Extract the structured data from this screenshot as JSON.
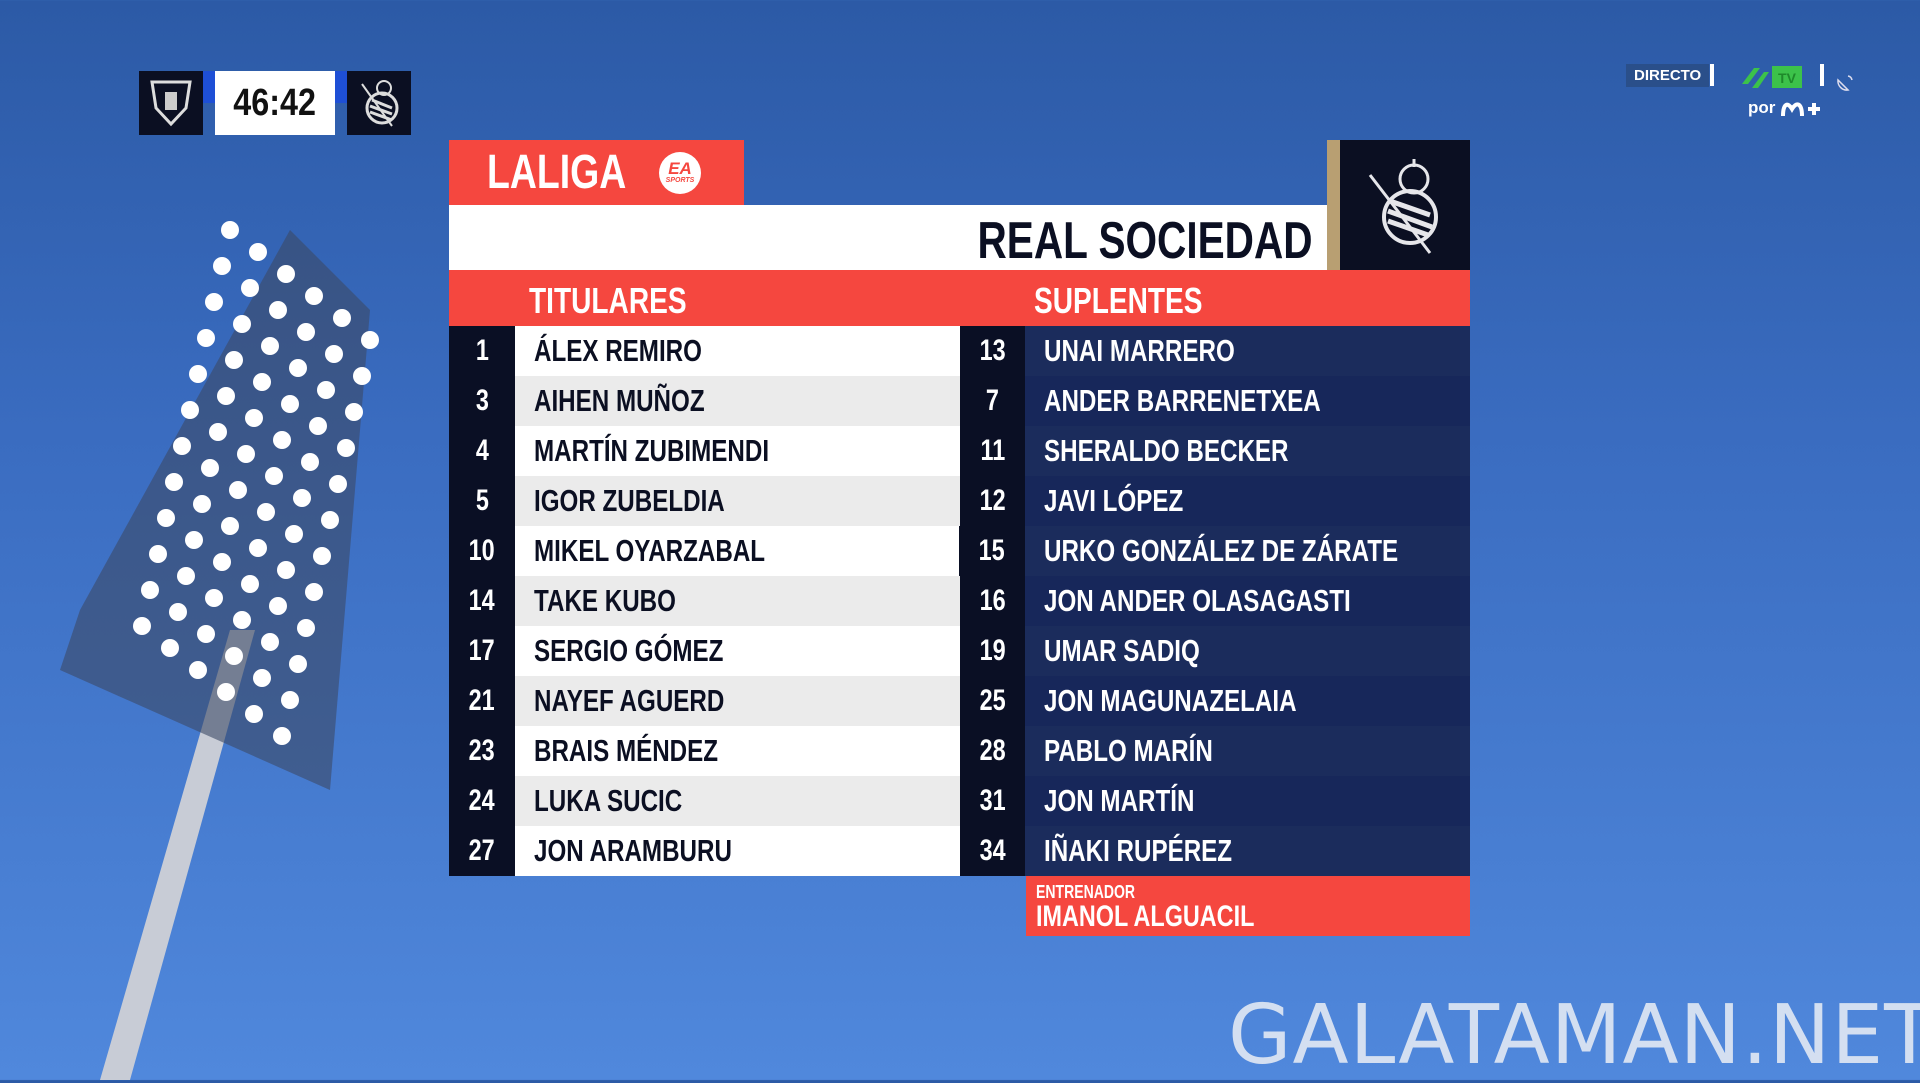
{
  "scorebug": {
    "clock": "46:42",
    "home_crest": "leganes-crest-icon",
    "away_crest": "real-sociedad-crest-icon",
    "accent": "#1e4fd6"
  },
  "broadcast": {
    "live_label": "DIRECTO",
    "channel_logo": "laliga-tv-logo",
    "por_label": "por",
    "provider_logo": "movistar-plus-logo",
    "satellite_icon": "satellite-dish-icon"
  },
  "graphic": {
    "league_label": "LALIGA",
    "sponsor_label": "EA SPORTS",
    "team_name": "REAL SOCIEDAD",
    "starters_label": "TITULARES",
    "subs_label": "SUPLENTES",
    "accent": "#f5473f",
    "navy": "#0a0f24",
    "starters": [
      {
        "num": "1",
        "name": "ÁLEX REMIRO"
      },
      {
        "num": "3",
        "name": "AIHEN MUÑOZ"
      },
      {
        "num": "4",
        "name": "MARTÍN ZUBIMENDI"
      },
      {
        "num": "5",
        "name": "IGOR ZUBELDIA"
      },
      {
        "num": "10",
        "name": "MIKEL OYARZABAL"
      },
      {
        "num": "14",
        "name": "TAKE KUBO"
      },
      {
        "num": "17",
        "name": "SERGIO GÓMEZ"
      },
      {
        "num": "21",
        "name": "NAYEF AGUERD"
      },
      {
        "num": "23",
        "name": "BRAIS MÉNDEZ"
      },
      {
        "num": "24",
        "name": "LUKA SUCIC"
      },
      {
        "num": "27",
        "name": "JON ARAMBURU"
      }
    ],
    "subs": [
      {
        "num": "13",
        "name": "UNAI MARRERO"
      },
      {
        "num": "7",
        "name": "ANDER BARRENETXEA"
      },
      {
        "num": "11",
        "name": "SHERALDO BECKER"
      },
      {
        "num": "12",
        "name": "JAVI LÓPEZ"
      },
      {
        "num": "15",
        "name": "URKO GONZÁLEZ DE ZÁRATE"
      },
      {
        "num": "16",
        "name": "JON ANDER OLASAGASTI"
      },
      {
        "num": "19",
        "name": "UMAR SADIQ"
      },
      {
        "num": "25",
        "name": "JON MAGUNAZELAIA"
      },
      {
        "num": "28",
        "name": "PABLO MARÍN"
      },
      {
        "num": "31",
        "name": "JON MARTÍN"
      },
      {
        "num": "34",
        "name": "IÑAKI RUPÉREZ"
      }
    ],
    "coach_label": "ENTRENADOR",
    "coach_name": "IMANOL ALGUACIL"
  },
  "watermark": "GALATAMAN.NET"
}
